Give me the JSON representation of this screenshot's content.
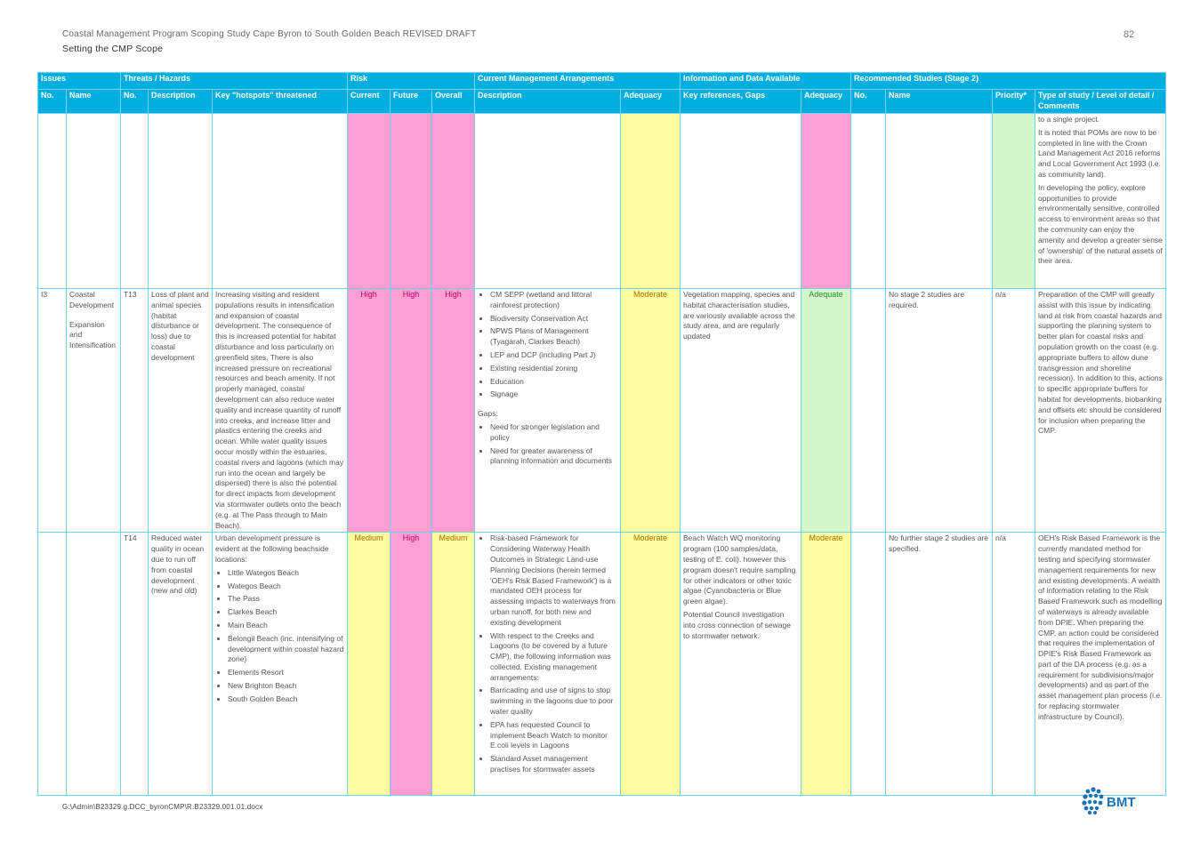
{
  "header": {
    "title": "Coastal Management Program Scoping Study Cape Byron to South Golden Beach REVISED DRAFT",
    "subtitle": "Setting the CMP Scope",
    "page_number": "82"
  },
  "footer": {
    "path": "G:\\Admin\\B23329.g.DCC_byronCMP\\R.B23329.001.01.docx",
    "logo": "BMT"
  },
  "groups": [
    "Issues",
    "Threats / Hazards",
    "Risk",
    "Current Management Arrangements",
    "Information and Data Available",
    "Recommended Studies (Stage 2)"
  ],
  "columns": [
    "No.",
    "Name",
    "No.",
    "Description",
    "Key \"hotspots\" threatened",
    "Current",
    "Future",
    "Overall",
    "Description",
    "Adequacy",
    "Key references, Gaps",
    "Adequacy",
    "No.",
    "Name",
    "Priority*",
    "Type of study / Level of detail / Comments"
  ],
  "row0": {
    "comments": [
      "to a single project.",
      "It is noted that POMs are now to be completed in line with the Crown Land Management Act 2016 reforms and Local Government Act 1993 (i.e. as community land).",
      "In developing the policy, explore opportunities to provide environmentally sensitive, controlled access to environment areas so that the community can enjoy the amenity and develop a greater sense of 'ownership' of the natural assets of their area."
    ]
  },
  "row1": {
    "issue_no": "I3",
    "issue_name_a": "Coastal Development",
    "issue_name_b": "Expansion and Intensification",
    "threat_no": "T13",
    "threat_desc": "Loss of plant and animal species (habitat disturbance or loss) due to coastal development",
    "hotspots": "Increasing visiting and resident populations results in intensification and expansion of coastal development. The consequence of this is increased potential for habitat disturbance and loss particularly on greenfield sites. There is also increased pressure on recreational resources and beach amenity. If not properly managed, coastal development can also reduce water quality and increase quantity of runoff into creeks, and increase litter and plastics entering the creeks and ocean. While water quality issues occur mostly within the estuaries, coastal rivers and lagoons (which may run into the ocean and largely be dispersed) there is also the potential for direct impacts from development via stormwater outlets onto the beach (e.g. at The Pass through to Main Beach).",
    "risk_current": "High",
    "risk_future": "High",
    "risk_overall": "High",
    "mgmt_items": [
      "CM SEPP (wetland and littoral rainforest protection)",
      "Biodiversity Conservation Act",
      "NPWS Plans of Management (Tyagarah, Clarkes Beach)",
      "LEP and DCP (including Part J)",
      "Existing residential zoning",
      "Education",
      "Signage"
    ],
    "gaps_label": "Gaps:",
    "gap_items": [
      "Need for stronger legislation and policy",
      "Need for greater awareness of planning information and documents"
    ],
    "mgmt_adequacy": "Moderate",
    "info": "Vegetation mapping, species and habitat characterisation studies, are variously available across the study area, and are regularly updated",
    "info_adequacy": "Adequate",
    "study_name": "No stage 2 studies are required.",
    "priority": "n/a",
    "comments": "Preparation of the CMP will greatly assist with this issue by indicating land at risk from coastal hazards and supporting the planning system to better plan for coastal risks and population growth on the coast (e.g. appropriate buffers to allow dune transgression and shoreline recession). In addition to this, actions to specific appropriate buffers for habitat for developments, biobanking and offsets etc should be considered for inclusion when preparing the CMP."
  },
  "row2": {
    "threat_no": "T14",
    "threat_desc": "Reduced water quality in ocean due to run off from coastal development (new and old)",
    "hotspots_intro": "Urban development pressure is evident at the following beachside locations:",
    "hotspot_items": [
      "Little Wategos Beach",
      "Wategos Beach",
      "The Pass",
      "Clarkes Beach",
      "Main Beach",
      "Belongil Beach (inc. intensifying of development within coastal hazard zone)",
      "Elements Resort",
      "New Brighton Beach",
      "South Golden Beach"
    ],
    "risk_current": "Medium",
    "risk_future": "High",
    "risk_overall": "Medium",
    "mgmt_items": [
      "Risk-based Framework for Considering Waterway Health Outcomes in Strategic Land-use Planning Decisions (herein termed 'OEH's Risk Based Framework') is a mandated OEH process for assessing impacts to waterways from urban runoff, for both new and existing development",
      "With respect to the Creeks and Lagoons (to be covered by a future CMP), the following information was collected. Existing management arrangements:",
      "Barricading and use of signs to stop swimming in the lagoons due to poor water quality",
      "EPA has requested Council to implement Beach Watch to monitor E.coli levels in Lagoons",
      "Standard Asset management practises for stormwater assets"
    ],
    "mgmt_adequacy": "Moderate",
    "info_a": "Beach Watch WQ monitoring program (100 samples/data, testing of E. coli). however this program doesn't require sampling for other indicators or other toxic algae (Cyanobacteria or Blue green algae).",
    "info_b": "Potential Council investigation into cross connection of sewage to stormwater network.",
    "info_adequacy": "Moderate",
    "study_name": "No further stage 2 studies are specified.",
    "priority": "n/a",
    "comments": "OEH's Risk Based Framework is the currently mandated method for testing and specifying stormwater management requirements for new and existing developments. A wealth of information relating to the Risk Based Framework such as modelling of waterways is already available from DPIE. When preparing the CMP, an action could be considered that requires the implementation of DPIE's Risk Based Framework as part of the DA process (e.g. as a requirement for subdivisions/major developments) and as part of the asset management plan process (i.e. for replacing stormwater infrastructure by Council)."
  },
  "colors": {
    "header_blue": "#00aee0",
    "risk_pink": "#fb9ed2",
    "adequacy_yellow": "#fefea0",
    "priority_green": "#d4f8cc",
    "logo_blue": "#1a73b8"
  }
}
